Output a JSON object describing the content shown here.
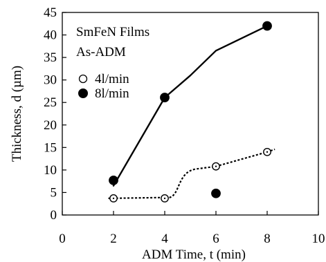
{
  "chart_data": {
    "type": "scatter",
    "xlabel": "ADM Time, t  (min)",
    "ylabel": "Thickness, d  (µm)",
    "xlim": [
      0,
      10
    ],
    "ylim": [
      0,
      45
    ],
    "xticks": [
      "0",
      "2",
      "4",
      "6",
      "8",
      "10"
    ],
    "yticks": [
      "0",
      "5",
      "10",
      "15",
      "20",
      "25",
      "30",
      "35",
      "40",
      "45"
    ],
    "annotations": [
      "SmFeN Films",
      "As-ADM"
    ],
    "legend_position": "upper-left inside",
    "grid": false,
    "series": [
      {
        "name": "4l/min",
        "marker": "open-circle",
        "x": [
          2,
          4,
          6,
          8
        ],
        "y": [
          3.7,
          3.7,
          10.8,
          14.0
        ],
        "trend": "dotted",
        "color": "#000000"
      },
      {
        "name": "8l/min",
        "marker": "filled-circle",
        "x": [
          2,
          4,
          6,
          8
        ],
        "y": [
          7.7,
          26.1,
          4.8,
          42.0
        ],
        "trend": "solid",
        "color": "#000000"
      }
    ]
  }
}
